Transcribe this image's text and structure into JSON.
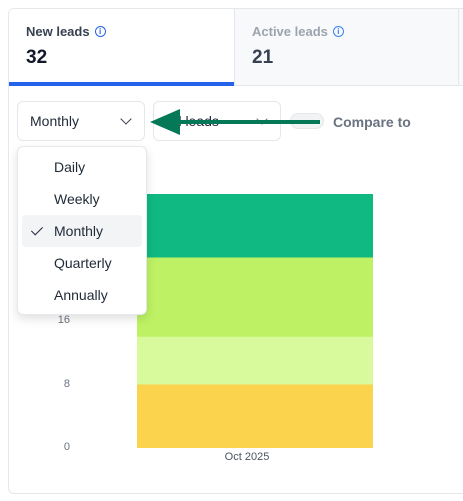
{
  "tabs": [
    {
      "label": "New leads",
      "value": "32",
      "icon": "info-icon"
    },
    {
      "label": "Active leads",
      "value": "21",
      "icon": "info-icon"
    }
  ],
  "controls": {
    "period_select": {
      "value": "Monthly"
    },
    "leads_select": {
      "value": "All leads"
    },
    "compare_label": "Compare to"
  },
  "dropdown": {
    "options": [
      "Daily",
      "Weekly",
      "Monthly",
      "Quarterly",
      "Annually"
    ],
    "selected": "Monthly"
  },
  "colors": {
    "accent": "#2563eb",
    "arrow": "#047857",
    "segments": [
      "#fcd34d",
      "#d9f99d",
      "#bef264",
      "#10b981"
    ]
  },
  "chart_data": {
    "type": "bar",
    "stacked": true,
    "categories": [
      "Oct 2025"
    ],
    "y_ticks": [
      "0",
      "8",
      "16"
    ],
    "ylim": [
      0,
      32
    ],
    "series": [
      {
        "values": [
          8
        ],
        "color": "#fcd34d"
      },
      {
        "values": [
          6
        ],
        "color": "#d9f99d"
      },
      {
        "values": [
          10
        ],
        "color": "#bef264"
      },
      {
        "values": [
          8
        ],
        "color": "#10b981"
      }
    ]
  }
}
